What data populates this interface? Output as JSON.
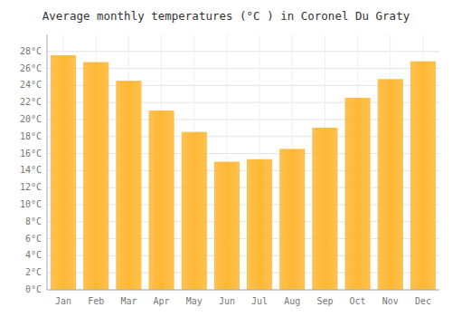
{
  "chart_data": {
    "type": "bar",
    "title": "Average monthly temperatures (°C ) in Coronel Du Graty",
    "categories": [
      "Jan",
      "Feb",
      "Mar",
      "Apr",
      "May",
      "Jun",
      "Jul",
      "Aug",
      "Sep",
      "Oct",
      "Nov",
      "Dec"
    ],
    "values": [
      27.5,
      26.7,
      24.5,
      21.0,
      18.5,
      15.0,
      15.3,
      16.5,
      19.0,
      22.5,
      24.7,
      26.8
    ],
    "color": "#FFB733",
    "ylim": [
      0,
      30
    ],
    "yticks": [
      {
        "value": 0,
        "label": "0°C"
      },
      {
        "value": 2,
        "label": "2°C"
      },
      {
        "value": 4,
        "label": "4°C"
      },
      {
        "value": 6,
        "label": "6°C"
      },
      {
        "value": 8,
        "label": "8°C"
      },
      {
        "value": 10,
        "label": "10°C"
      },
      {
        "value": 12,
        "label": "12°C"
      },
      {
        "value": 14,
        "label": "14°C"
      },
      {
        "value": 16,
        "label": "16°C"
      },
      {
        "value": 18,
        "label": "18°C"
      },
      {
        "value": 20,
        "label": "20°C"
      },
      {
        "value": 22,
        "label": "22°C"
      },
      {
        "value": 24,
        "label": "24°C"
      },
      {
        "value": 26,
        "label": "26°C"
      },
      {
        "value": 28,
        "label": "28°C"
      }
    ],
    "grid": true
  }
}
